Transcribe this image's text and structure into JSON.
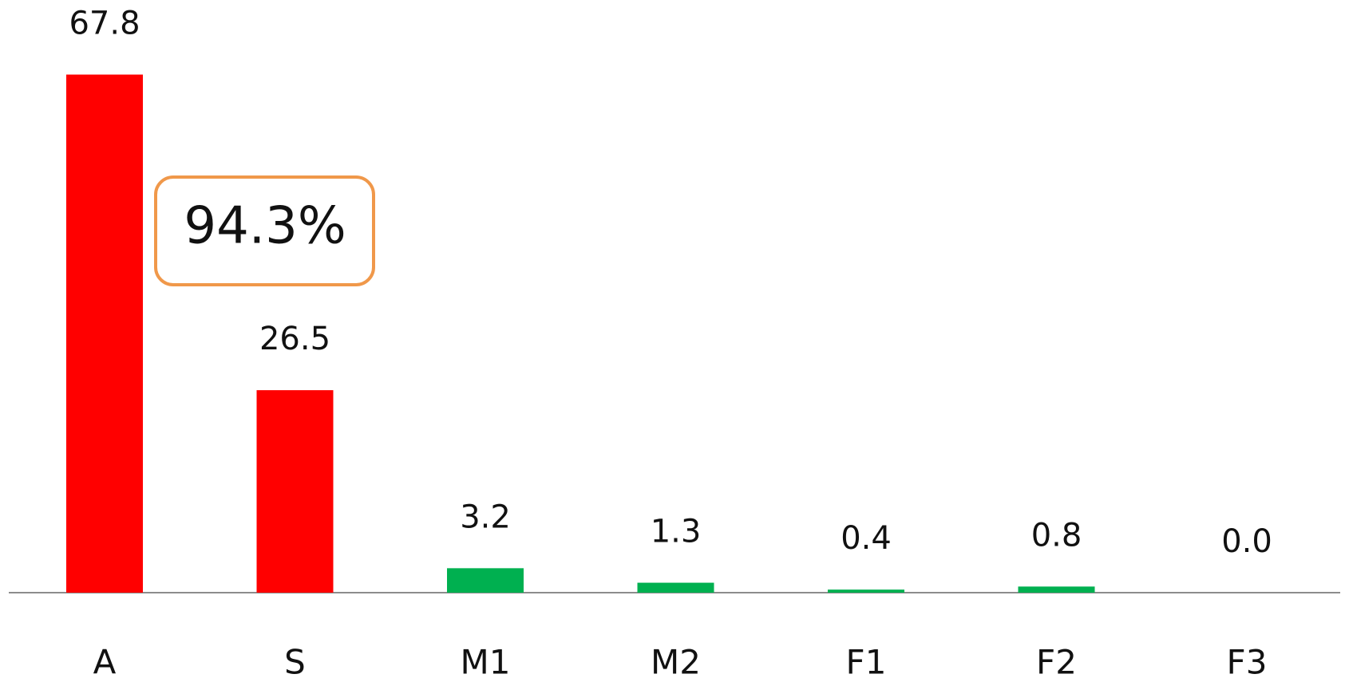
{
  "chart_data": {
    "type": "bar",
    "categories": [
      "A",
      "S",
      "M1",
      "M2",
      "F1",
      "F2",
      "F3"
    ],
    "values": [
      67.8,
      26.5,
      3.2,
      1.3,
      0.4,
      0.8,
      0.0
    ],
    "value_labels": [
      "67.8",
      "26.5",
      "3.2",
      "1.3",
      "0.4",
      "0.8",
      "0.0"
    ],
    "colors": [
      "#ff0000",
      "#ff0000",
      "#00b050",
      "#00b050",
      "#00b050",
      "#00b050",
      "#00b050"
    ],
    "annotation": "94.3%",
    "annotation_color": "#f0984a"
  }
}
